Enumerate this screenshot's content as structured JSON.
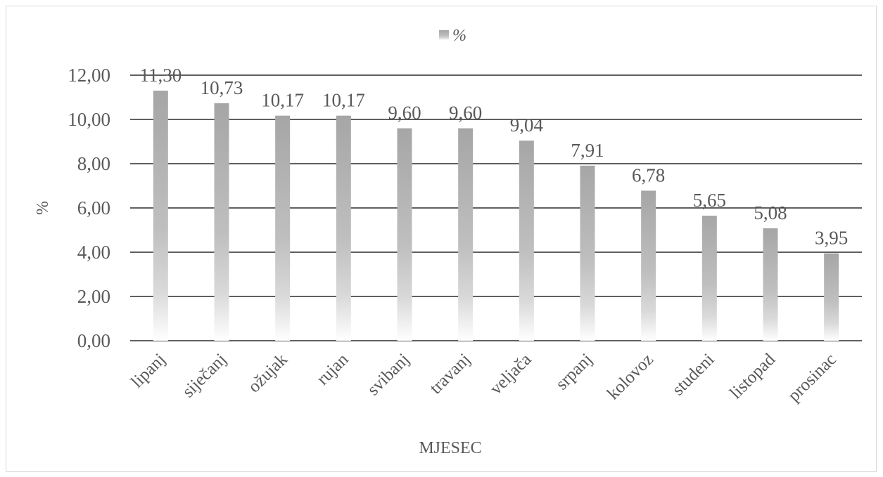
{
  "chart_data": {
    "type": "bar",
    "categories": [
      "lipanj",
      "siječanj",
      "ožujak",
      "rujan",
      "svibanj",
      "travanj",
      "veljača",
      "srpanj",
      "kolovoz",
      "studeni",
      "listopad",
      "prosinac"
    ],
    "series": [
      {
        "name": "%",
        "values": [
          11.3,
          10.73,
          10.17,
          10.17,
          9.6,
          9.6,
          9.04,
          7.91,
          6.78,
          5.65,
          5.08,
          3.95
        ],
        "labels": [
          "11,30",
          "10,73",
          "10,17",
          "10,17",
          "9,60",
          "9,60",
          "9,04",
          "7,91",
          "6,78",
          "5,65",
          "5,08",
          "3,95"
        ]
      }
    ],
    "xlabel": "MJESEC",
    "ylabel": "%",
    "ylim": [
      0,
      12
    ],
    "y_ticks": [
      "0,00",
      "2,00",
      "4,00",
      "6,00",
      "8,00",
      "10,00",
      "12,00"
    ],
    "grid": true,
    "legend": "top-center",
    "colors": {
      "bar_top": "#a6a6a6",
      "bar_bottom": "#ffffff",
      "grid": "#000000",
      "text": "#595959"
    }
  }
}
